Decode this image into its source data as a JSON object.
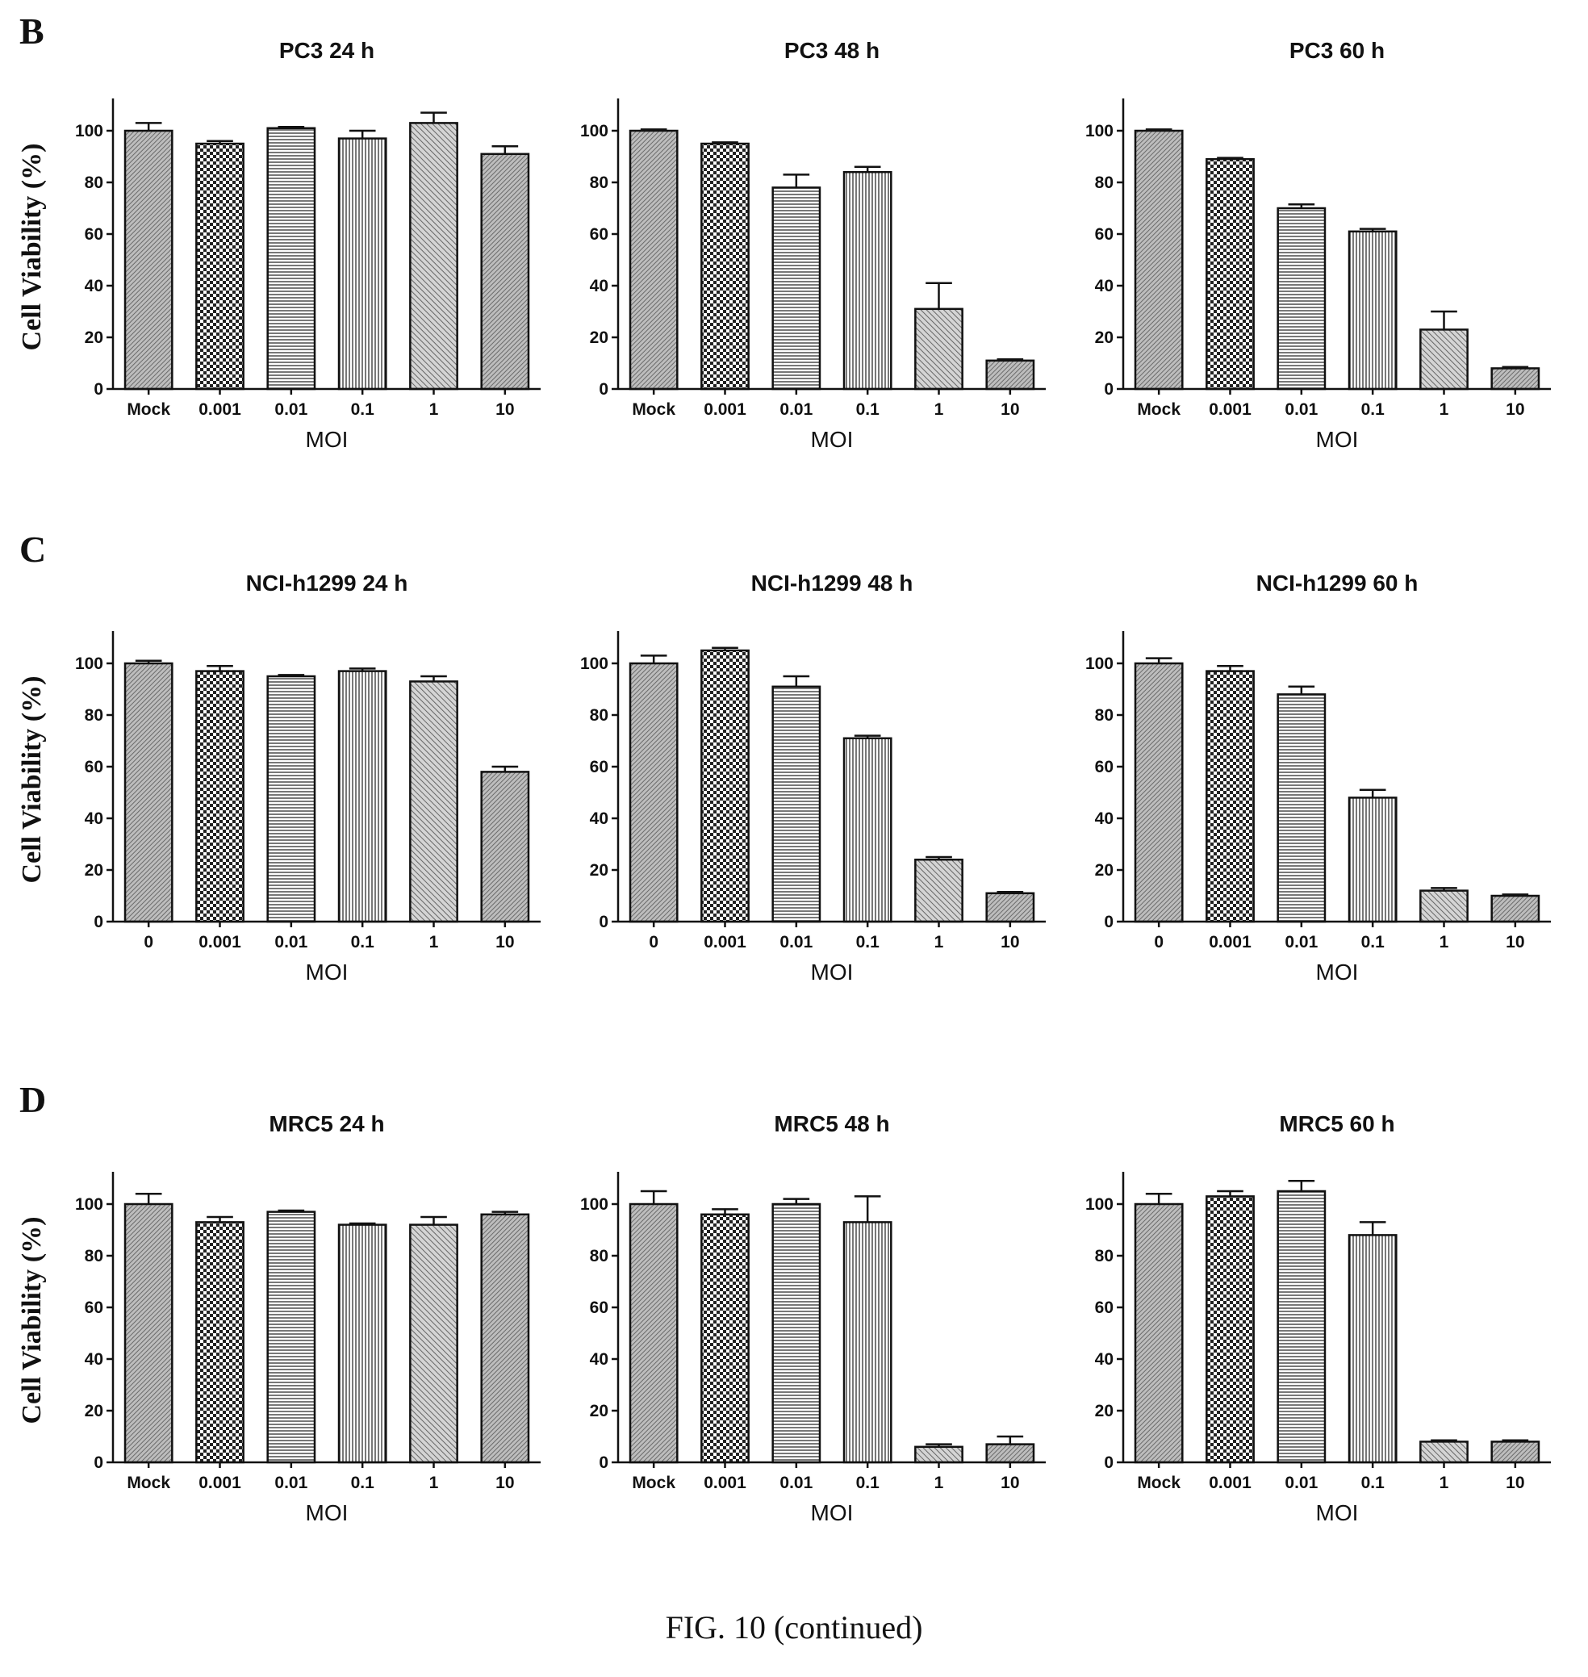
{
  "figure": {
    "caption": "FIG. 10 (continued)",
    "panels": [
      {
        "letter": "B"
      },
      {
        "letter": "C"
      },
      {
        "letter": "D"
      }
    ]
  },
  "patterns": [
    "dense-diagonal",
    "checker",
    "horizontal-lines",
    "vertical-lines",
    "diagonal-hatch",
    "dense-diagonal"
  ],
  "chart_data": [
    {
      "type": "bar",
      "title": "PC3  24 h",
      "xlabel": "MOI",
      "ylabel": "Cell Viability (%)",
      "ylim": [
        0,
        110
      ],
      "yticks": [
        0,
        20,
        40,
        60,
        80,
        100
      ],
      "categories": [
        "Mock",
        "0.001",
        "0.01",
        "0.1",
        "1",
        "10"
      ],
      "values": [
        100,
        95,
        101,
        97,
        103,
        91
      ],
      "errors": [
        3,
        1,
        0.5,
        3,
        4,
        3
      ]
    },
    {
      "type": "bar",
      "title": "PC3  48 h",
      "xlabel": "MOI",
      "ylabel": "",
      "ylim": [
        0,
        110
      ],
      "yticks": [
        0,
        20,
        40,
        60,
        80,
        100
      ],
      "categories": [
        "Mock",
        "0.001",
        "0.01",
        "0.1",
        "1",
        "10"
      ],
      "values": [
        100,
        95,
        78,
        84,
        31,
        11
      ],
      "errors": [
        0.5,
        0.5,
        5,
        2,
        10,
        0.5
      ]
    },
    {
      "type": "bar",
      "title": "PC3  60 h",
      "xlabel": "MOI",
      "ylabel": "",
      "ylim": [
        0,
        110
      ],
      "yticks": [
        0,
        20,
        40,
        60,
        80,
        100
      ],
      "categories": [
        "Mock",
        "0.001",
        "0.01",
        "0.1",
        "1",
        "10"
      ],
      "values": [
        100,
        89,
        70,
        61,
        23,
        8
      ],
      "errors": [
        0.5,
        0.5,
        1.5,
        1,
        7,
        0.5
      ]
    },
    {
      "type": "bar",
      "title": "NCI-h1299 24 h",
      "xlabel": "MOI",
      "ylabel": "Cell Viability (%)",
      "ylim": [
        0,
        110
      ],
      "yticks": [
        0,
        20,
        40,
        60,
        80,
        100
      ],
      "categories": [
        "0",
        "0.001",
        "0.01",
        "0.1",
        "1",
        "10"
      ],
      "values": [
        100,
        97,
        95,
        97,
        93,
        58
      ],
      "errors": [
        1,
        2,
        0.5,
        1,
        2,
        2
      ]
    },
    {
      "type": "bar",
      "title": "NCI-h1299  48 h",
      "xlabel": "MOI",
      "ylabel": "",
      "ylim": [
        0,
        110
      ],
      "yticks": [
        0,
        20,
        40,
        60,
        80,
        100
      ],
      "categories": [
        "0",
        "0.001",
        "0.01",
        "0.1",
        "1",
        "10"
      ],
      "values": [
        100,
        105,
        91,
        71,
        24,
        11
      ],
      "errors": [
        3,
        1,
        4,
        1,
        1,
        0.5
      ]
    },
    {
      "type": "bar",
      "title": "NCI-h1299  60 h",
      "xlabel": "MOI",
      "ylabel": "",
      "ylim": [
        0,
        110
      ],
      "yticks": [
        0,
        20,
        40,
        60,
        80,
        100
      ],
      "categories": [
        "0",
        "0.001",
        "0.01",
        "0.1",
        "1",
        "10"
      ],
      "values": [
        100,
        97,
        88,
        48,
        12,
        10
      ],
      "errors": [
        2,
        2,
        3,
        3,
        1,
        0.5
      ]
    },
    {
      "type": "bar",
      "title": "MRC5  24 h",
      "xlabel": "MOI",
      "ylabel": "Cell Viability (%)",
      "ylim": [
        0,
        110
      ],
      "yticks": [
        0,
        20,
        40,
        60,
        80,
        100
      ],
      "categories": [
        "Mock",
        "0.001",
        "0.01",
        "0.1",
        "1",
        "10"
      ],
      "values": [
        100,
        93,
        97,
        92,
        92,
        96
      ],
      "errors": [
        4,
        2,
        0.5,
        0.5,
        3,
        1
      ]
    },
    {
      "type": "bar",
      "title": "MRC5  48 h",
      "xlabel": "MOI",
      "ylabel": "",
      "ylim": [
        0,
        110
      ],
      "yticks": [
        0,
        20,
        40,
        60,
        80,
        100
      ],
      "categories": [
        "Mock",
        "0.001",
        "0.01",
        "0.1",
        "1",
        "10"
      ],
      "values": [
        100,
        96,
        100,
        93,
        6,
        7
      ],
      "errors": [
        5,
        2,
        2,
        10,
        1,
        3
      ]
    },
    {
      "type": "bar",
      "title": "MRC5  60 h",
      "xlabel": "MOI",
      "ylabel": "",
      "ylim": [
        0,
        110
      ],
      "yticks": [
        0,
        20,
        40,
        60,
        80,
        100
      ],
      "categories": [
        "Mock",
        "0.001",
        "0.01",
        "0.1",
        "1",
        "10"
      ],
      "values": [
        100,
        103,
        105,
        88,
        8,
        8
      ],
      "errors": [
        4,
        2,
        4,
        5,
        0.5,
        0.5
      ]
    }
  ]
}
